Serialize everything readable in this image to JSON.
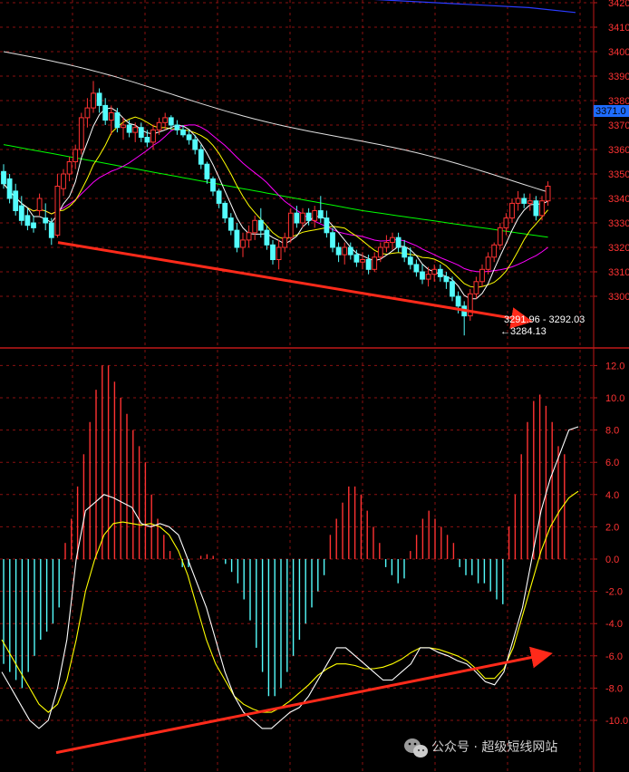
{
  "chart_data": [
    {
      "type": "candlestick",
      "panel": "price",
      "y_ticks": [
        "3420",
        "3410",
        "3400",
        "3390",
        "3380",
        "3370",
        "3360",
        "3350",
        "3340",
        "3330",
        "3320",
        "3310",
        "3300"
      ],
      "ylim": [
        3275,
        3425
      ],
      "current_price_label": "3371.0",
      "current_price": 3371,
      "annotations": {
        "range_label": "3291.96 - 3292.03",
        "low_label": "←3284.13"
      },
      "grid": true,
      "colors": {
        "up": "#ff3232",
        "down": "#54fcfc",
        "ma5": "#ffffff",
        "ma10": "#ffff00",
        "ma20": "#ff00ff",
        "ma60": "#00ff00",
        "ma120": "#e0e0e0",
        "ma250": "#2b3bff",
        "trend_arrow": "#ff2a1a"
      },
      "candles": [
        {
          "o": 3351,
          "h": 3354,
          "l": 3344,
          "c": 3346
        },
        {
          "o": 3348,
          "h": 3350,
          "l": 3338,
          "c": 3340
        },
        {
          "o": 3343,
          "h": 3346,
          "l": 3333,
          "c": 3335
        },
        {
          "o": 3337,
          "h": 3341,
          "l": 3329,
          "c": 3331
        },
        {
          "o": 3333,
          "h": 3336,
          "l": 3327,
          "c": 3329
        },
        {
          "o": 3330,
          "h": 3333,
          "l": 3326,
          "c": 3328
        },
        {
          "o": 3335,
          "h": 3342,
          "l": 3333,
          "c": 3340
        },
        {
          "o": 3332,
          "h": 3338,
          "l": 3327,
          "c": 3330
        },
        {
          "o": 3330,
          "h": 3332,
          "l": 3321,
          "c": 3324
        },
        {
          "o": 3325,
          "h": 3350,
          "l": 3324,
          "c": 3345
        },
        {
          "o": 3344,
          "h": 3352,
          "l": 3341,
          "c": 3350
        },
        {
          "o": 3350,
          "h": 3357,
          "l": 3347,
          "c": 3355
        },
        {
          "o": 3355,
          "h": 3362,
          "l": 3352,
          "c": 3360
        },
        {
          "o": 3360,
          "h": 3375,
          "l": 3358,
          "c": 3373
        },
        {
          "o": 3373,
          "h": 3381,
          "l": 3369,
          "c": 3377
        },
        {
          "o": 3377,
          "h": 3388,
          "l": 3375,
          "c": 3383
        },
        {
          "o": 3383,
          "h": 3385,
          "l": 3375,
          "c": 3378
        },
        {
          "o": 3378,
          "h": 3381,
          "l": 3370,
          "c": 3372
        },
        {
          "o": 3372,
          "h": 3378,
          "l": 3366,
          "c": 3375
        },
        {
          "o": 3375,
          "h": 3377,
          "l": 3367,
          "c": 3369
        },
        {
          "o": 3369,
          "h": 3373,
          "l": 3364,
          "c": 3370
        },
        {
          "o": 3370,
          "h": 3372,
          "l": 3365,
          "c": 3367
        },
        {
          "o": 3367,
          "h": 3371,
          "l": 3363,
          "c": 3369
        },
        {
          "o": 3369,
          "h": 3371,
          "l": 3363,
          "c": 3365
        },
        {
          "o": 3365,
          "h": 3368,
          "l": 3361,
          "c": 3363
        },
        {
          "o": 3363,
          "h": 3370,
          "l": 3360,
          "c": 3368
        },
        {
          "o": 3368,
          "h": 3373,
          "l": 3366,
          "c": 3371
        },
        {
          "o": 3371,
          "h": 3375,
          "l": 3368,
          "c": 3373
        },
        {
          "o": 3373,
          "h": 3374,
          "l": 3368,
          "c": 3370
        },
        {
          "o": 3370,
          "h": 3372,
          "l": 3366,
          "c": 3368
        },
        {
          "o": 3368,
          "h": 3370,
          "l": 3365,
          "c": 3366
        },
        {
          "o": 3366,
          "h": 3368,
          "l": 3362,
          "c": 3364
        },
        {
          "o": 3364,
          "h": 3366,
          "l": 3358,
          "c": 3360
        },
        {
          "o": 3360,
          "h": 3362,
          "l": 3352,
          "c": 3354
        },
        {
          "o": 3354,
          "h": 3355,
          "l": 3346,
          "c": 3348
        },
        {
          "o": 3348,
          "h": 3349,
          "l": 3341,
          "c": 3343
        },
        {
          "o": 3343,
          "h": 3344,
          "l": 3336,
          "c": 3338
        },
        {
          "o": 3338,
          "h": 3339,
          "l": 3330,
          "c": 3332
        },
        {
          "o": 3332,
          "h": 3334,
          "l": 3325,
          "c": 3327
        },
        {
          "o": 3327,
          "h": 3330,
          "l": 3318,
          "c": 3320
        },
        {
          "o": 3320,
          "h": 3326,
          "l": 3316,
          "c": 3323
        },
        {
          "o": 3323,
          "h": 3329,
          "l": 3320,
          "c": 3326
        },
        {
          "o": 3326,
          "h": 3333,
          "l": 3323,
          "c": 3331
        },
        {
          "o": 3331,
          "h": 3336,
          "l": 3324,
          "c": 3327
        },
        {
          "o": 3327,
          "h": 3329,
          "l": 3319,
          "c": 3321
        },
        {
          "o": 3321,
          "h": 3323,
          "l": 3313,
          "c": 3315
        },
        {
          "o": 3315,
          "h": 3323,
          "l": 3311,
          "c": 3320
        },
        {
          "o": 3320,
          "h": 3326,
          "l": 3318,
          "c": 3324
        },
        {
          "o": 3324,
          "h": 3336,
          "l": 3322,
          "c": 3334
        },
        {
          "o": 3334,
          "h": 3337,
          "l": 3328,
          "c": 3330
        },
        {
          "o": 3330,
          "h": 3336,
          "l": 3328,
          "c": 3334
        },
        {
          "o": 3334,
          "h": 3336,
          "l": 3329,
          "c": 3331
        },
        {
          "o": 3331,
          "h": 3337,
          "l": 3328,
          "c": 3335
        },
        {
          "o": 3335,
          "h": 3341,
          "l": 3330,
          "c": 3332
        },
        {
          "o": 3332,
          "h": 3335,
          "l": 3324,
          "c": 3326
        },
        {
          "o": 3326,
          "h": 3328,
          "l": 3318,
          "c": 3320
        },
        {
          "o": 3320,
          "h": 3322,
          "l": 3314,
          "c": 3317
        },
        {
          "o": 3317,
          "h": 3322,
          "l": 3313,
          "c": 3320
        },
        {
          "o": 3320,
          "h": 3322,
          "l": 3315,
          "c": 3317
        },
        {
          "o": 3317,
          "h": 3319,
          "l": 3312,
          "c": 3314
        },
        {
          "o": 3314,
          "h": 3318,
          "l": 3311,
          "c": 3315
        },
        {
          "o": 3315,
          "h": 3317,
          "l": 3309,
          "c": 3311
        },
        {
          "o": 3311,
          "h": 3318,
          "l": 3310,
          "c": 3316
        },
        {
          "o": 3316,
          "h": 3322,
          "l": 3314,
          "c": 3320
        },
        {
          "o": 3320,
          "h": 3325,
          "l": 3318,
          "c": 3322
        },
        {
          "o": 3322,
          "h": 3326,
          "l": 3319,
          "c": 3324
        },
        {
          "o": 3324,
          "h": 3326,
          "l": 3318,
          "c": 3320
        },
        {
          "o": 3320,
          "h": 3323,
          "l": 3314,
          "c": 3316
        },
        {
          "o": 3316,
          "h": 3320,
          "l": 3311,
          "c": 3313
        },
        {
          "o": 3313,
          "h": 3315,
          "l": 3308,
          "c": 3310
        },
        {
          "o": 3310,
          "h": 3313,
          "l": 3305,
          "c": 3307
        },
        {
          "o": 3307,
          "h": 3312,
          "l": 3304,
          "c": 3309
        },
        {
          "o": 3309,
          "h": 3313,
          "l": 3306,
          "c": 3311
        },
        {
          "o": 3311,
          "h": 3313,
          "l": 3306,
          "c": 3308
        },
        {
          "o": 3308,
          "h": 3310,
          "l": 3303,
          "c": 3306
        },
        {
          "o": 3306,
          "h": 3308,
          "l": 3298,
          "c": 3300
        },
        {
          "o": 3300,
          "h": 3302,
          "l": 3293,
          "c": 3296
        },
        {
          "o": 3296,
          "h": 3298,
          "l": 3284,
          "c": 3292
        },
        {
          "o": 3292,
          "h": 3303,
          "l": 3290,
          "c": 3301
        },
        {
          "o": 3301,
          "h": 3308,
          "l": 3299,
          "c": 3306
        },
        {
          "o": 3306,
          "h": 3313,
          "l": 3304,
          "c": 3311
        },
        {
          "o": 3311,
          "h": 3318,
          "l": 3309,
          "c": 3316
        },
        {
          "o": 3316,
          "h": 3322,
          "l": 3314,
          "c": 3321
        },
        {
          "o": 3321,
          "h": 3330,
          "l": 3319,
          "c": 3328
        },
        {
          "o": 3328,
          "h": 3334,
          "l": 3325,
          "c": 3332
        },
        {
          "o": 3332,
          "h": 3340,
          "l": 3330,
          "c": 3338
        },
        {
          "o": 3338,
          "h": 3343,
          "l": 3335,
          "c": 3340
        },
        {
          "o": 3340,
          "h": 3342,
          "l": 3336,
          "c": 3338
        },
        {
          "o": 3338,
          "h": 3342,
          "l": 3335,
          "c": 3339
        },
        {
          "o": 3339,
          "h": 3341,
          "l": 3331,
          "c": 3333
        },
        {
          "o": 3333,
          "h": 3341,
          "l": 3331,
          "c": 3339
        },
        {
          "o": 3339,
          "h": 3347,
          "l": 3337,
          "c": 3345
        }
      ],
      "ma250": [
        3428,
        3427,
        3426,
        3425,
        3424,
        3423,
        3422,
        3421,
        3420,
        3419,
        3418,
        3416
      ],
      "trend_arrow_from_price": 3322,
      "trend_arrow_to_price": 3290
    },
    {
      "type": "bar+line",
      "panel": "macd",
      "y_ticks": [
        "12.0",
        "10.0",
        "8.0",
        "6.0",
        "4.0",
        "2.0",
        "0.0",
        "-2.0",
        "-4.0",
        "-6.0",
        "-8.0",
        "-10.0"
      ],
      "ylim": [
        -12,
        13
      ],
      "grid": true,
      "colors": {
        "hist_up": "#ff3232",
        "hist_down": "#54fcfc",
        "dif": "#ffffff",
        "dea": "#ffff00",
        "trend_arrow": "#ff2a1a"
      },
      "histogram": [
        -6.5,
        -7,
        -7.5,
        -8,
        -7,
        -6,
        -5,
        -4.5,
        -4,
        -3,
        1,
        2.5,
        4.5,
        6.5,
        8.5,
        10.5,
        12,
        12,
        11,
        10,
        9,
        8,
        7,
        6,
        4,
        2.5,
        1.5,
        0.5,
        0,
        -0.5,
        -0.5,
        0,
        0.2,
        0.3,
        0.2,
        0,
        -0.3,
        -0.8,
        -1.5,
        -2.5,
        -3.8,
        -5.5,
        -7,
        -8.5,
        -8.5,
        -8,
        -7,
        -6,
        -5,
        -4,
        -3,
        -2,
        -1,
        1.5,
        2.5,
        3.5,
        4.5,
        4.5,
        4,
        3,
        2,
        1,
        -0.5,
        -1,
        -1.5,
        -1.2,
        0.5,
        1.5,
        2.5,
        3,
        2.5,
        2,
        1.5,
        1,
        -0.5,
        -1,
        -1,
        -1.5,
        -1.5,
        -2,
        -2.5,
        -2.8,
        2,
        4,
        6.5,
        8.5,
        9.8,
        10.2,
        9.5,
        8.5,
        7,
        6.5
      ],
      "dif": [
        -7,
        -8,
        -9,
        -10,
        -10.5,
        -10,
        -8,
        -5,
        0,
        3,
        3.5,
        4,
        3.8,
        3.5,
        3.2,
        2.2,
        2,
        2.2,
        2,
        1.5,
        0,
        -1.5,
        -3,
        -5,
        -7,
        -8.5,
        -9.5,
        -10,
        -10.5,
        -10.5,
        -10,
        -9.5,
        -9.2,
        -8.5,
        -7.5,
        -6.5,
        -5.5,
        -5.5,
        -6,
        -6.5,
        -7,
        -7.5,
        -7.5,
        -7,
        -6.5,
        -5.5,
        -5.5,
        -5.8,
        -6,
        -6.3,
        -6.5,
        -7,
        -7.6,
        -7.8,
        -7,
        -5,
        -3,
        0,
        3,
        5,
        6.5,
        8,
        8.2
      ],
      "dea": [
        -5,
        -6,
        -7,
        -8,
        -9,
        -9.5,
        -9,
        -7.5,
        -5,
        -2,
        0,
        1.5,
        2.2,
        2.3,
        2.2,
        2.1,
        2.2,
        2,
        1.5,
        0.5,
        -1,
        -3,
        -5,
        -6.5,
        -7.5,
        -8.5,
        -9,
        -9.3,
        -9.5,
        -9.5,
        -9.2,
        -8.8,
        -8.3,
        -7.8,
        -7.2,
        -6.8,
        -6.5,
        -6.5,
        -6.6,
        -6.8,
        -6.8,
        -6.7,
        -6.5,
        -6.2,
        -5.8,
        -5.5,
        -5.5,
        -5.6,
        -5.8,
        -6,
        -6.3,
        -6.8,
        -7.4,
        -7.4,
        -6.8,
        -5.5,
        -3.5,
        -1.5,
        0.5,
        2,
        3,
        3.8,
        4.2
      ],
      "trend_arrow_from_value": -12,
      "trend_arrow_to_value": -5.9
    }
  ],
  "watermark": {
    "icon": "wechat-icon",
    "text": "公众号 · 超级短线网站"
  }
}
